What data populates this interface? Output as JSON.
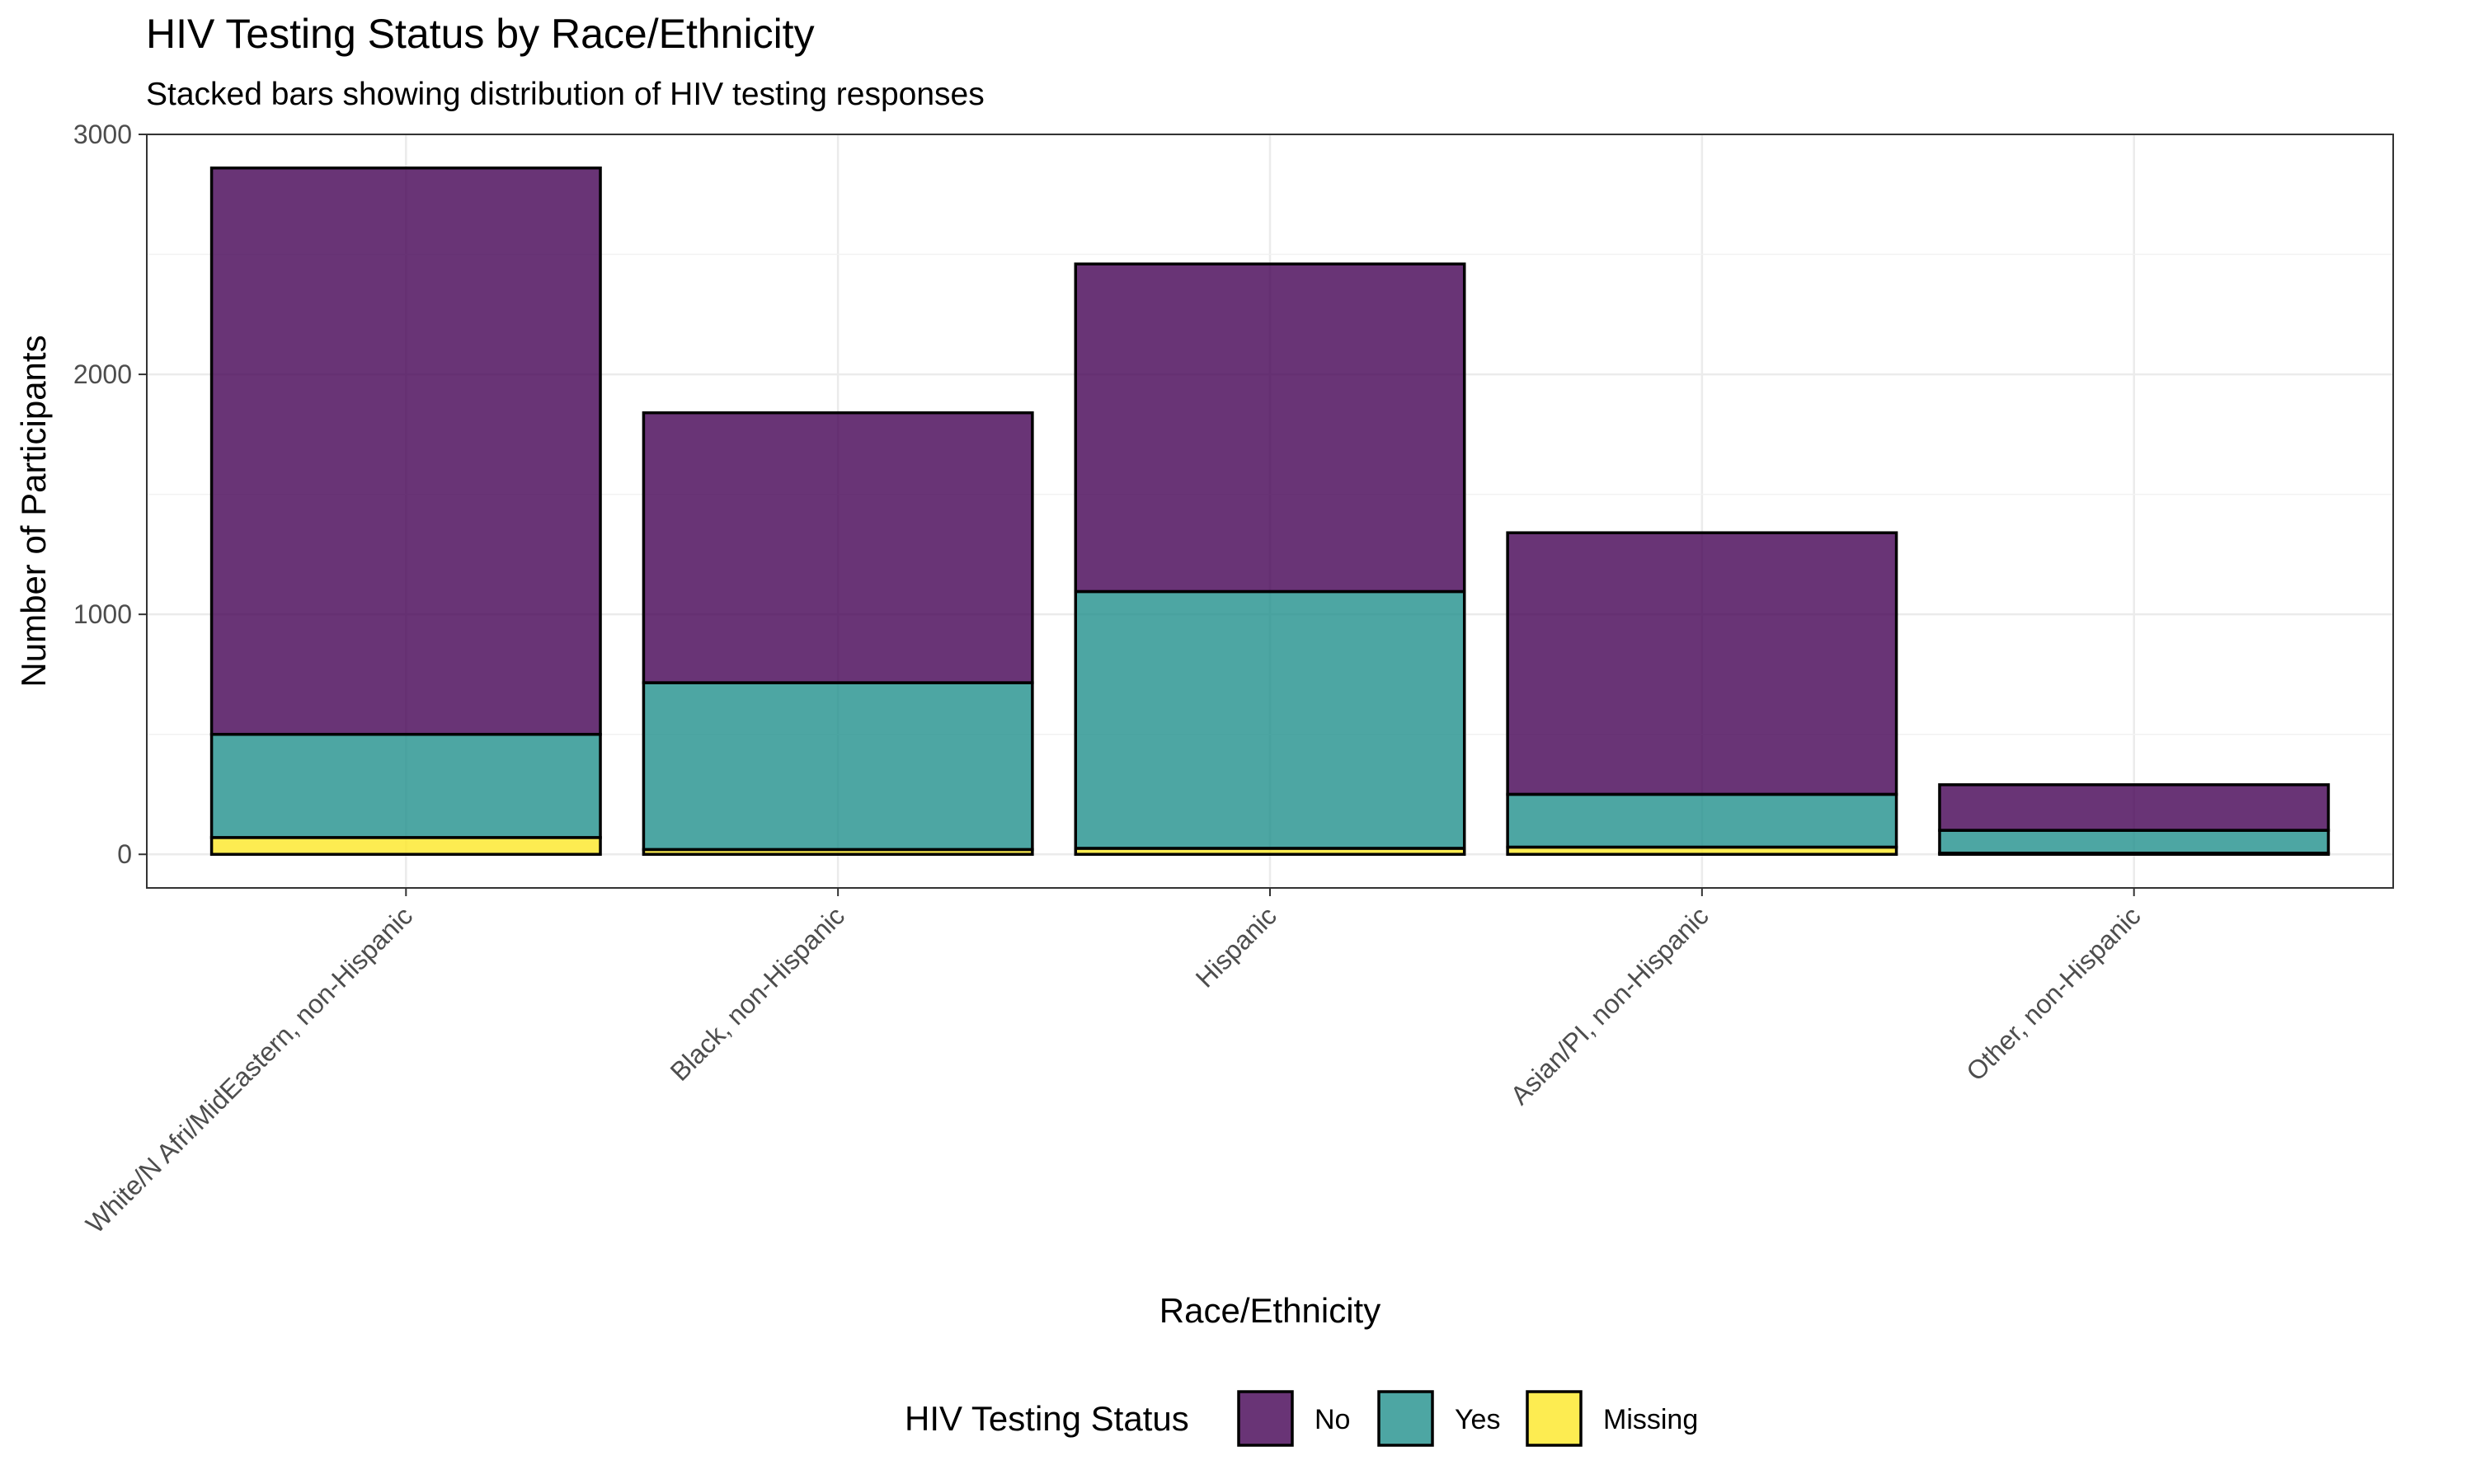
{
  "chart_data": {
    "type": "bar",
    "stacked": true,
    "title": "HIV Testing Status by Race/Ethnicity",
    "subtitle": "Stacked bars showing distribution of HIV testing responses",
    "xlabel": "Race/Ethnicity",
    "ylabel": "Number of Participants",
    "ylim": [
      -140,
      3000
    ],
    "yticks": [
      0,
      1000,
      2000,
      3000
    ],
    "grid": true,
    "categories": [
      "White/N Afri/MidEastern, non-Hispanic",
      "Black, non-Hispanic",
      "Hispanic",
      "Asian/PI, non-Hispanic",
      "Other, non-Hispanic"
    ],
    "series": [
      {
        "name": "Missing",
        "color": "#FDE725",
        "values": [
          70,
          20,
          25,
          30,
          5
        ]
      },
      {
        "name": "Yes",
        "color": "#21908C",
        "values": [
          430,
          695,
          1070,
          220,
          95
        ]
      },
      {
        "name": "No",
        "color": "#440154",
        "values": [
          2360,
          1125,
          1365,
          1090,
          190
        ]
      }
    ],
    "legend": {
      "title": "HIV Testing Status",
      "position": "bottom",
      "order": [
        "No",
        "Yes",
        "Missing"
      ]
    }
  }
}
